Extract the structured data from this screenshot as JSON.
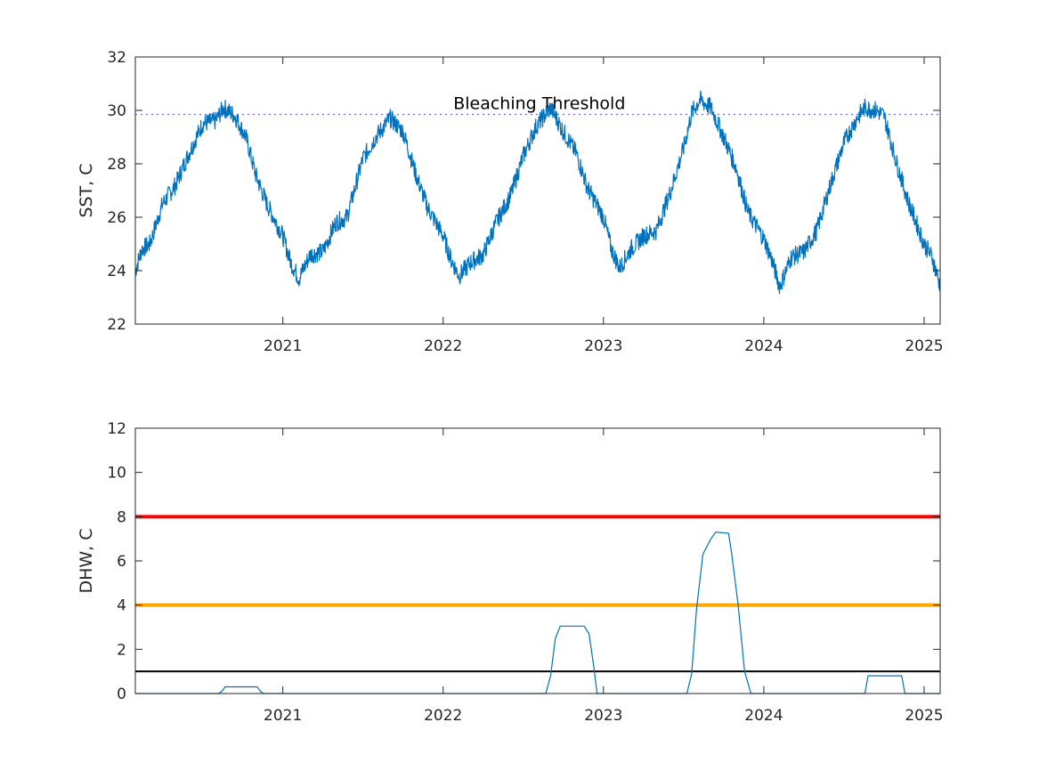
{
  "chart_data": [
    {
      "type": "line",
      "ylabel": "SST, C",
      "xlim": [
        2020.08,
        2025.1
      ],
      "ylim": [
        22,
        32
      ],
      "yticks": [
        22,
        24,
        26,
        28,
        30,
        32
      ],
      "xticks": [
        2021,
        2022,
        2023,
        2024,
        2025
      ],
      "xtick_labels": [
        "2021",
        "2022",
        "2023",
        "2024",
        "2025"
      ],
      "grid": false,
      "threshold": {
        "value": 29.85,
        "label": "Bleaching Threshold",
        "color": "#6b6bf0",
        "style": "dotted"
      },
      "series": [
        {
          "color": "#0072bd",
          "x": [
            2020.08,
            2020.12,
            2020.17,
            2020.25,
            2020.33,
            2020.4,
            2020.5,
            2020.58,
            2020.63,
            2020.7,
            2020.77,
            2020.83,
            2020.9,
            2021.0,
            2021.05,
            2021.1,
            2021.17,
            2021.25,
            2021.33,
            2021.4,
            2021.5,
            2021.58,
            2021.67,
            2021.75,
            2021.83,
            2021.9,
            2022.0,
            2022.05,
            2022.1,
            2022.17,
            2022.25,
            2022.33,
            2022.42,
            2022.5,
            2022.58,
            2022.67,
            2022.75,
            2022.83,
            2022.9,
            2023.0,
            2023.05,
            2023.1,
            2023.17,
            2023.25,
            2023.33,
            2023.42,
            2023.5,
            2023.55,
            2023.6,
            2023.67,
            2023.75,
            2023.83,
            2023.9,
            2024.0,
            2024.05,
            2024.1,
            2024.17,
            2024.25,
            2024.33,
            2024.42,
            2024.5,
            2024.58,
            2024.63,
            2024.7,
            2024.75,
            2024.83,
            2024.9,
            2025.0,
            2025.05,
            2025.1
          ],
          "y": [
            24.0,
            24.8,
            25.0,
            26.5,
            27.2,
            28.2,
            29.5,
            29.6,
            30.1,
            29.8,
            29.0,
            27.6,
            26.5,
            25.3,
            24.3,
            23.7,
            24.6,
            24.7,
            25.8,
            26.0,
            28.2,
            29.0,
            29.7,
            29.2,
            27.6,
            26.4,
            25.3,
            24.4,
            23.8,
            24.3,
            24.6,
            25.8,
            26.8,
            28.3,
            29.4,
            30.1,
            29.2,
            28.4,
            27.1,
            26.0,
            24.8,
            24.1,
            24.8,
            25.3,
            25.5,
            27.0,
            28.6,
            29.9,
            30.4,
            30.1,
            29.0,
            27.8,
            26.2,
            25.2,
            24.4,
            23.4,
            24.5,
            24.7,
            25.5,
            27.3,
            28.8,
            29.7,
            30.1,
            30.0,
            29.8,
            28.0,
            26.6,
            25.0,
            24.5,
            23.4
          ]
        }
      ]
    },
    {
      "type": "line",
      "ylabel": "DHW, C",
      "xlim": [
        2020.08,
        2025.1
      ],
      "ylim": [
        0,
        12
      ],
      "yticks": [
        0,
        2,
        4,
        6,
        8,
        10,
        12
      ],
      "xticks": [
        2021,
        2022,
        2023,
        2024,
        2025
      ],
      "xtick_labels": [
        "2021",
        "2022",
        "2023",
        "2024",
        "2025"
      ],
      "grid": false,
      "reference_lines": [
        {
          "value": 8,
          "color": "#ff0000"
        },
        {
          "value": 4,
          "color": "#ffa500"
        },
        {
          "value": 1,
          "color": "#000000"
        }
      ],
      "series": [
        {
          "color": "#0072bd",
          "x": [
            2020.08,
            2020.6,
            2020.62,
            2020.64,
            2020.84,
            2020.86,
            2020.88,
            2022.64,
            2022.67,
            2022.7,
            2022.73,
            2022.88,
            2022.91,
            2022.94,
            2022.96,
            2023.52,
            2023.55,
            2023.58,
            2023.62,
            2023.67,
            2023.7,
            2023.78,
            2023.8,
            2023.84,
            2023.88,
            2023.92,
            2024.63,
            2024.65,
            2024.86,
            2024.88,
            2025.1
          ],
          "y": [
            0,
            0,
            0.1,
            0.3,
            0.3,
            0.1,
            0,
            0,
            0.8,
            2.5,
            3.05,
            3.05,
            2.7,
            1.2,
            0,
            0,
            0.9,
            3.8,
            6.3,
            7.0,
            7.3,
            7.25,
            6.3,
            4.0,
            1.0,
            0,
            0,
            0.8,
            0.8,
            0,
            0
          ]
        }
      ]
    }
  ]
}
